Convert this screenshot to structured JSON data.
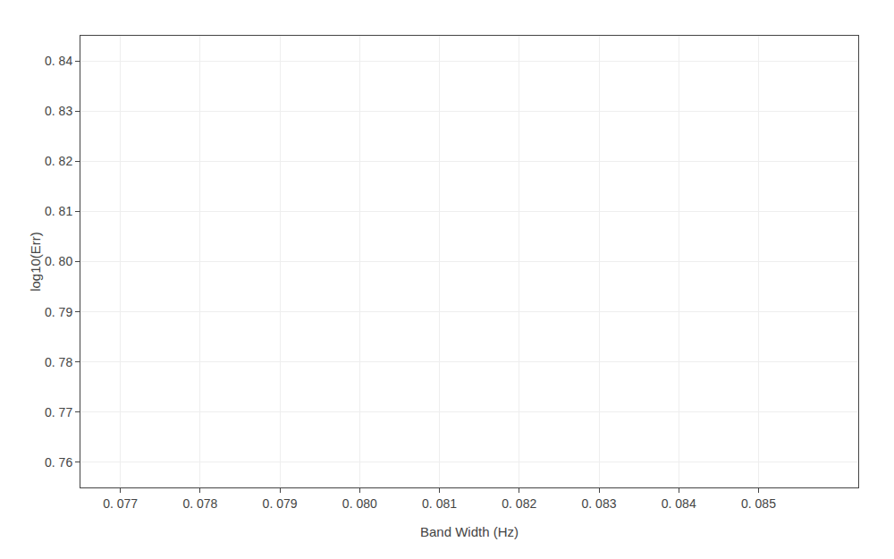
{
  "chart_data": {
    "type": "scatter",
    "xlabel": "Band Width (Hz)",
    "ylabel": "log10(Err)",
    "series": [],
    "xlim": [
      0.0765,
      0.08625
    ],
    "ylim": [
      0.755,
      0.845
    ],
    "xticks": [
      {
        "value": 0.077,
        "label": "0. 077"
      },
      {
        "value": 0.078,
        "label": "0. 078"
      },
      {
        "value": 0.079,
        "label": "0. 079"
      },
      {
        "value": 0.08,
        "label": "0. 080"
      },
      {
        "value": 0.081,
        "label": "0. 081"
      },
      {
        "value": 0.082,
        "label": "0. 082"
      },
      {
        "value": 0.083,
        "label": "0. 083"
      },
      {
        "value": 0.084,
        "label": "0. 084"
      },
      {
        "value": 0.085,
        "label": "0. 085"
      }
    ],
    "yticks": [
      {
        "value": 0.76,
        "label": "0. 76"
      },
      {
        "value": 0.77,
        "label": "0. 77"
      },
      {
        "value": 0.78,
        "label": "0. 78"
      },
      {
        "value": 0.79,
        "label": "0. 79"
      },
      {
        "value": 0.8,
        "label": "0. 80"
      },
      {
        "value": 0.81,
        "label": "0. 81"
      },
      {
        "value": 0.82,
        "label": "0. 82"
      },
      {
        "value": 0.83,
        "label": "0. 83"
      },
      {
        "value": 0.84,
        "label": "0. 84"
      }
    ],
    "grid": true
  }
}
